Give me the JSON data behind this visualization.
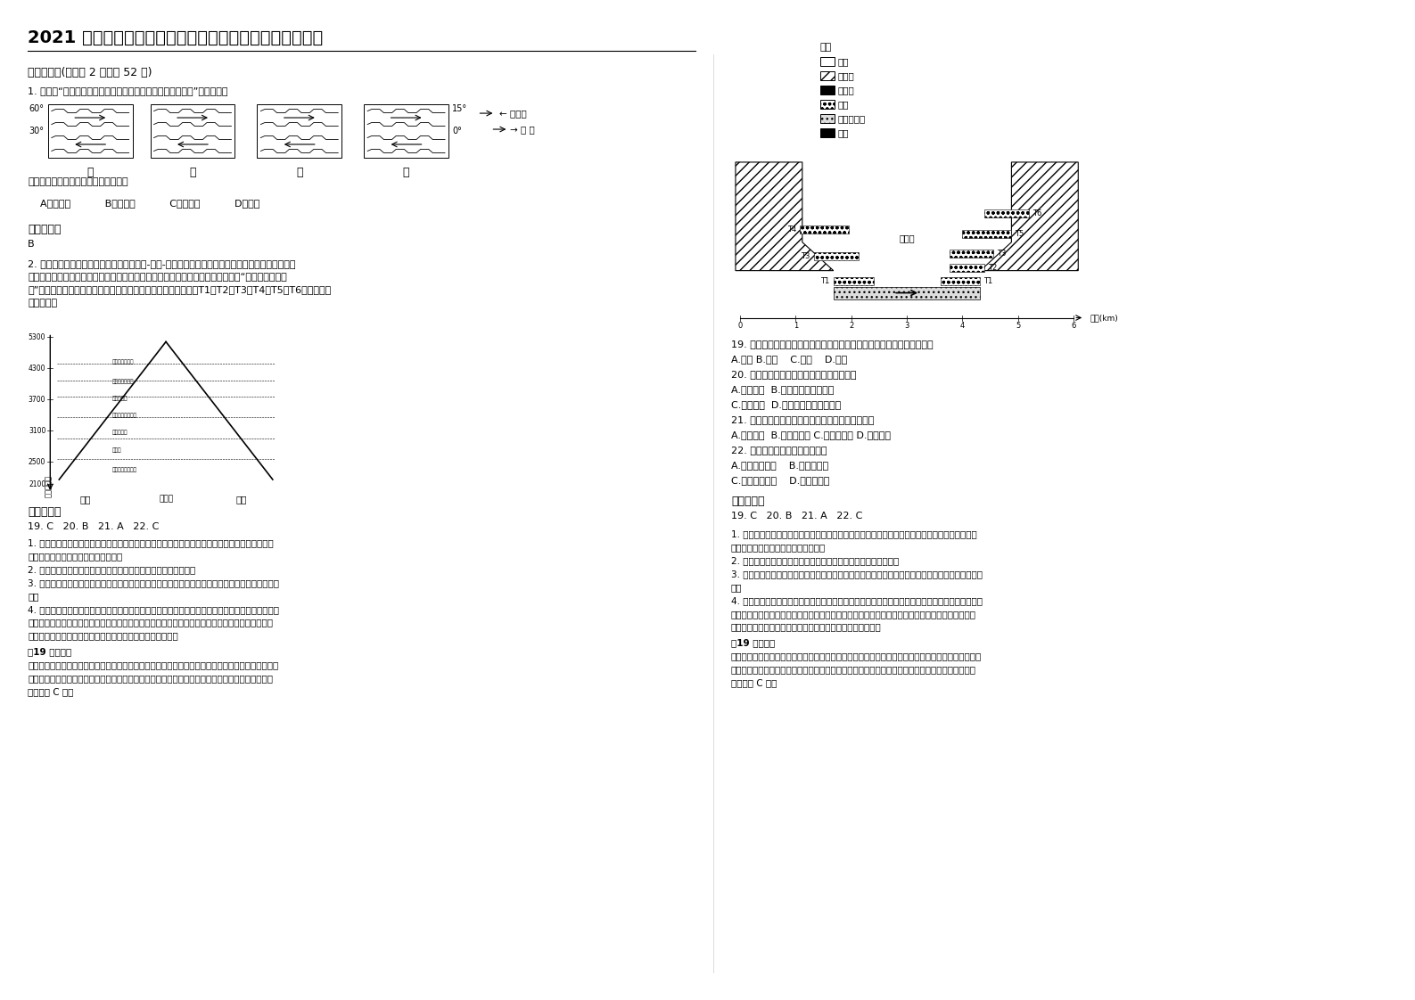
{
  "title": "2021 年河南省商丘市计算机学校高三地理模拟试题含解析",
  "bg_color": "#ffffff",
  "text_color": "#000000",
  "section1": "一、选择题(每小题 2 分，共 52 分)",
  "q1_intro": "1. 下图为“不同季节部分纬度范围内气压带、风带分布示意图”。读图完成",
  "q1_transition": "甲图到乙图的变化过程，时间跳度约为",
  "q1_options": "    A、三个月           B、六个月           C、九个月           D、一年",
  "ref_ans": "参考答案：",
  "q1_ans": "B",
  "q2_text": "2. 一般从山谷到山顶垂直自然带呈现为乔木-灌木-草甸的渐变规律，但在横断山区干热的河谷，谷底\n是灌丛或芒漠草地，森林一般生长在山顶或半山腰，有的地理学家把这种现象称为“倒置的垂直自然\n带”，如左图。右图为该河段两屸分布形成于不同年代的平坦面：T1、T2、T3、T4、T5、T6。据此完成\n下面小题。",
  "diag_labels": [
    "甲",
    "乙",
    "丙",
    "丁"
  ],
  "lat_60": "60°",
  "lat_30": "30°",
  "lat_15": "15°",
  "lat_0": "0°",
  "qiyadian": "← 气压带",
  "fengdai": "→ 风 带",
  "legend_title": "图例",
  "legend_items": [
    "河滩",
    "玄武岐",
    "石灰岐",
    "砂石",
    "细沙、粉沙",
    "黄土"
  ],
  "jinsha_label": "金沙江",
  "dist_label": "距离(km)",
  "q19": "19. 影响金沙江东坡寒温带暗针叶林分布上限的海拔比西坡低的主要因素是",
  "q19_opts": "A.坡度 B.海拔    C.水分    D.热量",
  "q20": "20. 金沙江河谷气候干早，是因为金沙江河谷",
  "q20_opts_a": "A.地势低平  B.地处背风坡的雨影区",
  "q20_opts_b": "C.植被稀少  D.受副热带高气压带控制",
  "q21": "21. 金沙江某河段两屸出现黄土，由此可推出该区域",
  "q21_opts": "A.干热环境  B.河流流量大 C.河流流速快 D.风力较大",
  "q22": "22. 金沙江某河段地貌的形成原因",
  "q22_opts_a": "A.地壳持续上升    B.向两侧侵蚀",
  "q22_opts_b": "C.地壳间歇上升    D.向源头侵蚀",
  "ref_ans2": "参考答案：",
  "ans2": "19. C   20. B   21. A   22. C",
  "ans_detail1": "1. 分析植被分布主要从水分和热量两方面进行分析，东坡和西坡不是阴阳坡差异，因此热量差异不",
  "ans_detail1b": "大，因此产生主要原因就是水分的差异",
  "ans_detail2": "2. 横断山区，山高谷深，地形封闭，河谷多为背风坡，降水稀少。",
  "ans_detail3": "3. 黄土颗粒小，重量轻，能够在此沉积下来，说明河流水量较少，流速缓慢，由此推出该区域干热环",
  "ans_detail3b": "境。",
  "ans_detail4": "4. 这地貌为河流阶地，构造运动的稳定期河流以侧蚀作用为主，造成宽阔的谷底或平原，然后外力的",
  "ans_detail4b": "堆积作用形成其上的沉积物，构造运动的上升期河流下切，原来的谷底或平原被抬升成为阶地面。如",
  "ans_detail4c": "果这一过程多次反复，在河谷的横剖面上便可出现多级阶地。",
  "ans_q19_detail": "　19 题详解、",
  "ans_q19_detail2": "金沙江东坡寒温带暗针叶林带分布上限的海拔比西坡的低（空间差异），是因为金沙江东坡为背风坡，",
  "ans_q19_detail3": "相对干燥；坡度对暗针叶林带分布上限影响不明显，海拔差异不大，分别位于东坡和西坡，热量差异",
  "ans_q19_detail4": "不大，故 C 对。",
  "hai_ba": "海拔（米）",
  "west_slope": "西坡",
  "east_slope": "东坡",
  "vegetation_zones": [
    "高山草甸及草地带",
    "寒温带",
    "暗针叶林带",
    "高寒草甸丛草地带",
    "寒温带灌丛",
    "干旱灌丛草地帘",
    "干热灌丛草地帘"
  ],
  "y_ticks": [
    [
      "5300",
      0
    ],
    [
      "4300",
      35
    ],
    [
      "3700",
      70
    ],
    [
      "3100",
      105
    ],
    [
      "2500",
      140
    ],
    [
      "2100",
      165
    ]
  ],
  "terrace_labels_left": [
    "T4",
    "T3",
    "T1"
  ],
  "terrace_labels_right": [
    "T6",
    "T5",
    "T3",
    "T2",
    "T1"
  ],
  "ans_left_col": "19. C   20. B   21. A   22. C"
}
